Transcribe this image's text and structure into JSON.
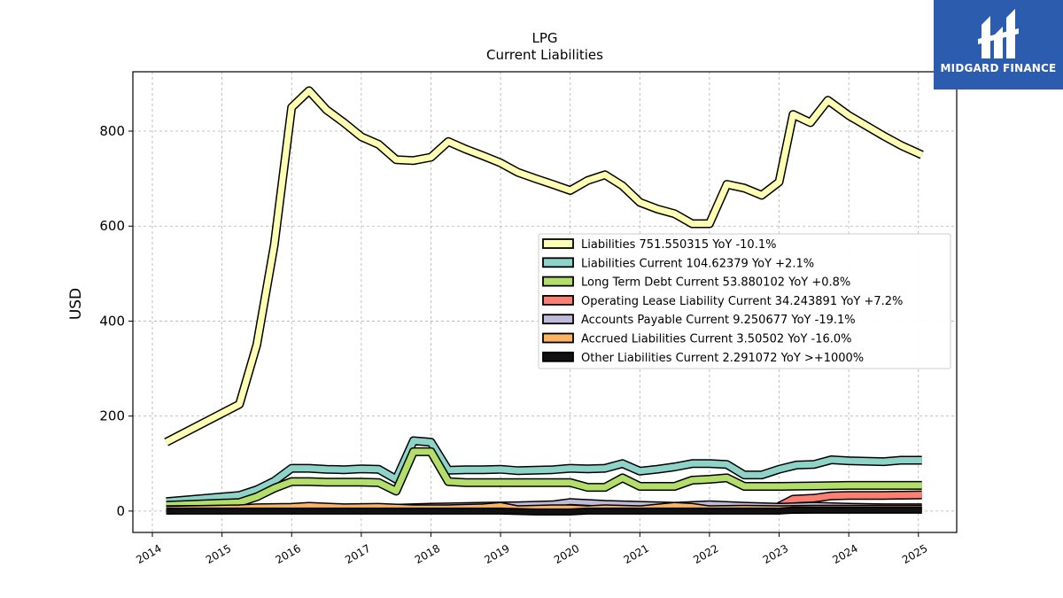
{
  "chart_data": {
    "type": "line",
    "title": "LPG",
    "subtitle": "Current  Liabilities",
    "ylabel": "USD",
    "xlabel": "",
    "xlim": [
      2013.72,
      2025.55
    ],
    "ylim": [
      -45,
      925
    ],
    "grid": true,
    "legend_position": "center-right",
    "xticks": [
      "2014",
      "2015",
      "2016",
      "2017",
      "2018",
      "2019",
      "2020",
      "2021",
      "2022",
      "2023",
      "2024",
      "2025"
    ],
    "yticks": [
      0,
      200,
      400,
      600,
      800
    ],
    "series": [
      {
        "name": "Liabilities",
        "legend": "Liabilities  751.550315 YoY -10.1%",
        "color": "#ffffb3",
        "width": 7,
        "points": [
          [
            2014.2,
            145
          ],
          [
            2015.25,
            225
          ],
          [
            2015.5,
            350
          ],
          [
            2015.75,
            560
          ],
          [
            2016.0,
            850
          ],
          [
            2016.25,
            885
          ],
          [
            2016.5,
            845
          ],
          [
            2016.75,
            818
          ],
          [
            2017.0,
            788
          ],
          [
            2017.25,
            772
          ],
          [
            2017.5,
            740
          ],
          [
            2017.75,
            738
          ],
          [
            2018.0,
            745
          ],
          [
            2018.25,
            778
          ],
          [
            2018.5,
            762
          ],
          [
            2018.75,
            748
          ],
          [
            2019.0,
            733
          ],
          [
            2019.25,
            713
          ],
          [
            2019.5,
            700
          ],
          [
            2019.75,
            688
          ],
          [
            2020.0,
            675
          ],
          [
            2020.25,
            696
          ],
          [
            2020.5,
            708
          ],
          [
            2020.75,
            685
          ],
          [
            2021.0,
            650
          ],
          [
            2021.25,
            636
          ],
          [
            2021.5,
            626
          ],
          [
            2021.75,
            605
          ],
          [
            2022.0,
            605
          ],
          [
            2022.25,
            688
          ],
          [
            2022.5,
            680
          ],
          [
            2022.75,
            665
          ],
          [
            2023.0,
            693
          ],
          [
            2023.2,
            835
          ],
          [
            2023.45,
            818
          ],
          [
            2023.7,
            865
          ],
          [
            2024.0,
            833
          ],
          [
            2024.5,
            790
          ],
          [
            2024.75,
            770
          ],
          [
            2025.05,
            750
          ]
        ]
      },
      {
        "name": "Liabilities Current",
        "legend": "Liabilities Current  104.62379 YoY +2.1%",
        "color": "#8dd3c7",
        "width": 7,
        "points": [
          [
            2014.2,
            20
          ],
          [
            2015.25,
            33
          ],
          [
            2015.5,
            45
          ],
          [
            2015.75,
            63
          ],
          [
            2016.0,
            90
          ],
          [
            2016.25,
            90
          ],
          [
            2016.5,
            88
          ],
          [
            2016.75,
            87
          ],
          [
            2017.0,
            89
          ],
          [
            2017.25,
            88
          ],
          [
            2017.5,
            67
          ],
          [
            2017.75,
            148
          ],
          [
            2018.0,
            145
          ],
          [
            2018.25,
            86
          ],
          [
            2018.5,
            87
          ],
          [
            2018.75,
            87
          ],
          [
            2019.0,
            88
          ],
          [
            2019.25,
            85
          ],
          [
            2019.5,
            86
          ],
          [
            2019.75,
            87
          ],
          [
            2020.0,
            90
          ],
          [
            2020.25,
            89
          ],
          [
            2020.5,
            90
          ],
          [
            2020.75,
            100
          ],
          [
            2021.0,
            84
          ],
          [
            2021.25,
            88
          ],
          [
            2021.5,
            93
          ],
          [
            2021.75,
            100
          ],
          [
            2022.0,
            100
          ],
          [
            2022.25,
            98
          ],
          [
            2022.5,
            76
          ],
          [
            2022.75,
            76
          ],
          [
            2023.0,
            88
          ],
          [
            2023.25,
            97
          ],
          [
            2023.5,
            98
          ],
          [
            2023.75,
            108
          ],
          [
            2024.0,
            106
          ],
          [
            2024.5,
            104
          ],
          [
            2024.75,
            107
          ],
          [
            2025.05,
            107
          ]
        ]
      },
      {
        "name": "Long Term Debt Current",
        "legend": "Long Term Debt Current  53.880102 YoY +0.8%",
        "color": "#b3de69",
        "width": 7,
        "points": [
          [
            2014.2,
            12
          ],
          [
            2015.25,
            18
          ],
          [
            2015.5,
            30
          ],
          [
            2015.75,
            48
          ],
          [
            2016.0,
            62
          ],
          [
            2016.25,
            62
          ],
          [
            2016.5,
            61
          ],
          [
            2016.75,
            61
          ],
          [
            2017.0,
            61
          ],
          [
            2017.25,
            60
          ],
          [
            2017.5,
            42
          ],
          [
            2017.75,
            125
          ],
          [
            2018.0,
            125
          ],
          [
            2018.25,
            62
          ],
          [
            2018.5,
            60
          ],
          [
            2018.75,
            60
          ],
          [
            2019.0,
            60
          ],
          [
            2019.25,
            60
          ],
          [
            2019.5,
            60
          ],
          [
            2019.75,
            60
          ],
          [
            2020.0,
            60
          ],
          [
            2020.25,
            50
          ],
          [
            2020.5,
            50
          ],
          [
            2020.75,
            70
          ],
          [
            2021.0,
            52
          ],
          [
            2021.25,
            52
          ],
          [
            2021.5,
            52
          ],
          [
            2021.75,
            65
          ],
          [
            2022.0,
            67
          ],
          [
            2022.25,
            70
          ],
          [
            2022.5,
            52
          ],
          [
            2022.75,
            52
          ],
          [
            2023.0,
            52
          ],
          [
            2023.5,
            53
          ],
          [
            2024.0,
            54
          ],
          [
            2024.5,
            54
          ],
          [
            2025.05,
            54
          ]
        ]
      },
      {
        "name": "Operating Lease Liability Current",
        "legend": "Operating Lease Liability Current  34.243891 YoY +7.2%",
        "color": "#fb8072",
        "width": 7,
        "points": [
          [
            2023.0,
            10
          ],
          [
            2023.2,
            25
          ],
          [
            2023.5,
            27
          ],
          [
            2023.75,
            32
          ],
          [
            2024.0,
            33
          ],
          [
            2024.5,
            33
          ],
          [
            2025.05,
            34
          ]
        ]
      },
      {
        "name": "Accounts Payable Current",
        "legend": "Accounts Payable Current  9.250677 YoY -19.1%",
        "color": "#bebada",
        "width": 5,
        "points": [
          [
            2014.2,
            5
          ],
          [
            2015.25,
            6
          ],
          [
            2016.0,
            8
          ],
          [
            2016.75,
            6
          ],
          [
            2017.5,
            8
          ],
          [
            2018.0,
            10
          ],
          [
            2018.75,
            12
          ],
          [
            2019.25,
            13
          ],
          [
            2019.75,
            15
          ],
          [
            2020.0,
            20
          ],
          [
            2020.5,
            16
          ],
          [
            2021.0,
            14
          ],
          [
            2021.5,
            12
          ],
          [
            2022.0,
            15
          ],
          [
            2022.5,
            12
          ],
          [
            2023.0,
            10
          ],
          [
            2023.5,
            12
          ],
          [
            2024.0,
            10
          ],
          [
            2024.5,
            9
          ],
          [
            2025.05,
            9
          ]
        ]
      },
      {
        "name": "Accrued Liabilities Current",
        "legend": "Accrued Liabilities Current  3.50502 YoY -16.0%",
        "color": "#fdb462",
        "width": 7,
        "points": [
          [
            2014.2,
            2
          ],
          [
            2015.25,
            5
          ],
          [
            2015.5,
            7
          ],
          [
            2016.0,
            8
          ],
          [
            2016.25,
            10
          ],
          [
            2016.75,
            7
          ],
          [
            2017.25,
            8
          ],
          [
            2017.75,
            5
          ],
          [
            2018.25,
            5
          ],
          [
            2018.75,
            7
          ],
          [
            2019.0,
            10
          ],
          [
            2019.25,
            3
          ],
          [
            2019.75,
            5
          ],
          [
            2020.0,
            5
          ],
          [
            2020.25,
            3
          ],
          [
            2020.5,
            5
          ],
          [
            2021.0,
            3
          ],
          [
            2021.5,
            10
          ],
          [
            2021.75,
            8
          ],
          [
            2022.0,
            3
          ],
          [
            2022.5,
            4
          ],
          [
            2023.0,
            3
          ],
          [
            2023.5,
            4
          ],
          [
            2024.0,
            4
          ],
          [
            2024.5,
            4
          ],
          [
            2025.05,
            4
          ]
        ]
      },
      {
        "name": "Other Liabilities Current",
        "legend": "Other Liabilities Current  2.291072 YoY >+1000%",
        "color": "#111111",
        "width": 5,
        "points": [
          [
            2014.2,
            0
          ],
          [
            2015.25,
            0
          ],
          [
            2016.0,
            0
          ],
          [
            2017.0,
            0
          ],
          [
            2018.0,
            0
          ],
          [
            2019.0,
            0
          ],
          [
            2019.5,
            -2
          ],
          [
            2020.0,
            -2
          ],
          [
            2020.25,
            0
          ],
          [
            2021.0,
            0
          ],
          [
            2022.0,
            0
          ],
          [
            2023.0,
            0
          ],
          [
            2023.2,
            2
          ],
          [
            2024.0,
            2
          ],
          [
            2025.05,
            2
          ]
        ]
      }
    ]
  },
  "brand": {
    "name": "MIDGARD FINANCE",
    "color": "#2b5cad"
  }
}
